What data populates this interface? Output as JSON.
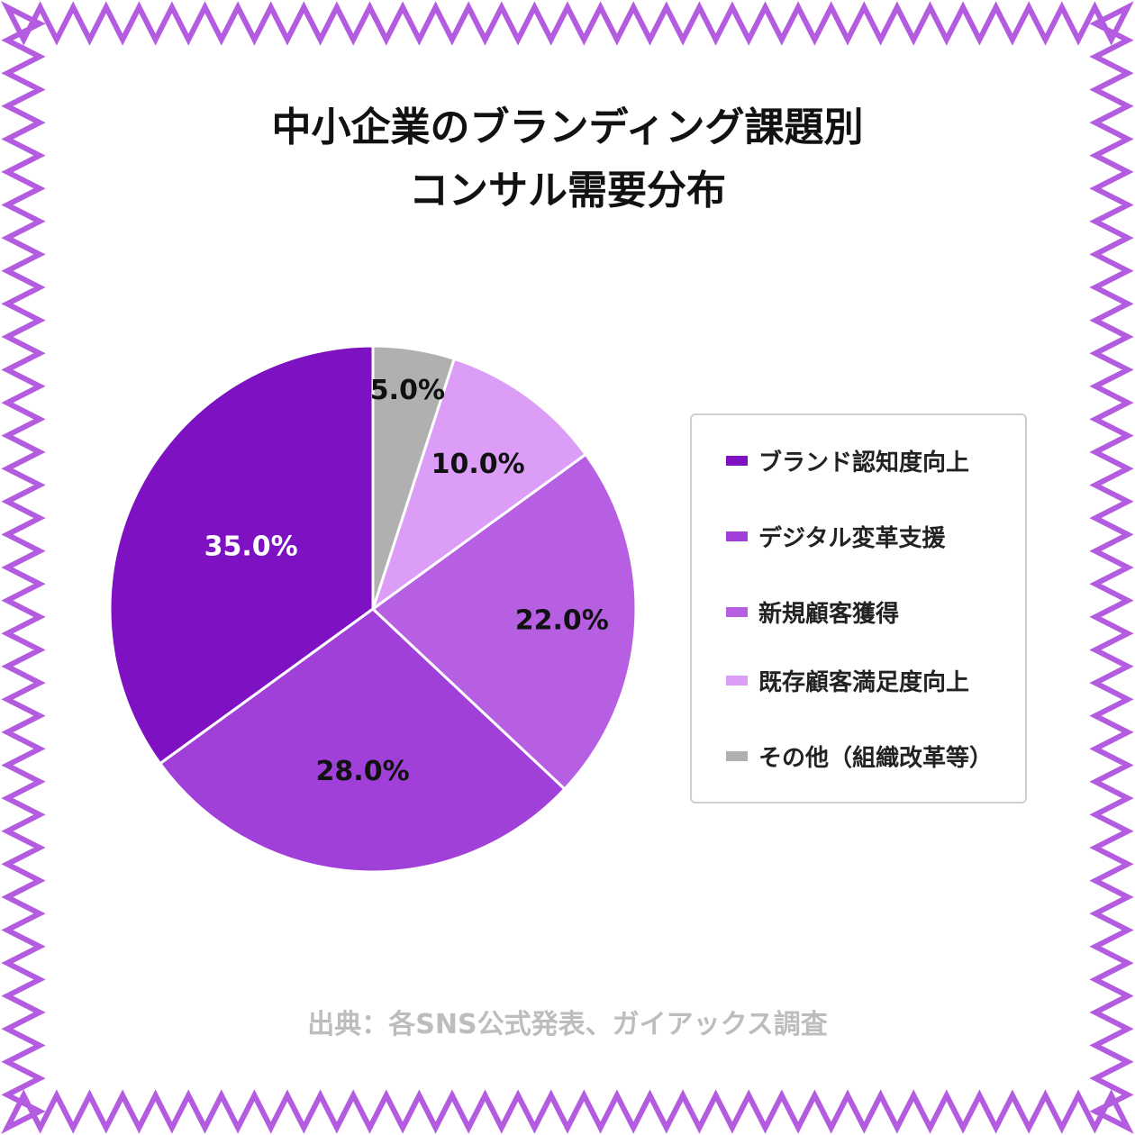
{
  "title_line1": "中小企業のブランディング課題別",
  "title_line2": "コンサル需要分布",
  "source": "出典：各SNS公式発表、ガイアックス調査",
  "frame_color": "#b45ce0",
  "chart_data": {
    "type": "pie",
    "categories": [
      "ブランド認知度向上",
      "デジタル変革支援",
      "新規顧客獲得",
      "既存顧客満足度向上",
      "その他（組織改革等）"
    ],
    "values": [
      35.0,
      28.0,
      22.0,
      10.0,
      5.0
    ],
    "value_labels": [
      "35.0%",
      "28.0%",
      "22.0%",
      "10.0%",
      "5.0%"
    ],
    "colors": [
      "#7e12c2",
      "#a040d9",
      "#b65fe3",
      "#dc9df7",
      "#b0b0b0"
    ],
    "label_colors": [
      "#ffffff",
      "#111111",
      "#111111",
      "#111111",
      "#111111"
    ],
    "title": "中小企業のブランディング課題別 コンサル需要分布",
    "legend_position": "right"
  }
}
